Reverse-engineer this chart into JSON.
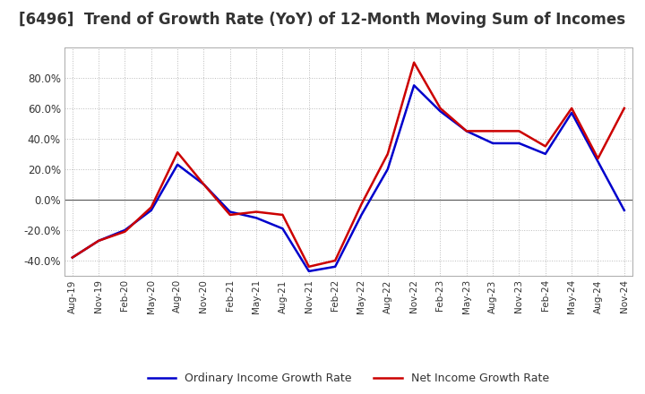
{
  "title": "[6496]  Trend of Growth Rate (YoY) of 12-Month Moving Sum of Incomes",
  "title_fontsize": 12,
  "ylim": [
    -50,
    100
  ],
  "yticks": [
    -40.0,
    -20.0,
    0.0,
    20.0,
    40.0,
    60.0,
    80.0
  ],
  "ytick_labels": [
    "-40.0%",
    "-20.0%",
    "0.0%",
    "20.0%",
    "40.0%",
    "60.0%",
    "80.0%"
  ],
  "x_labels": [
    "Aug-19",
    "Nov-19",
    "Feb-20",
    "May-20",
    "Aug-20",
    "Nov-20",
    "Feb-21",
    "May-21",
    "Aug-21",
    "Nov-21",
    "Feb-22",
    "May-22",
    "Aug-22",
    "Nov-22",
    "Feb-23",
    "May-23",
    "Aug-23",
    "Nov-23",
    "Feb-24",
    "May-24",
    "Aug-24",
    "Nov-24"
  ],
  "ordinary_income": [
    -38,
    -27,
    -20,
    -7,
    23,
    10,
    -8,
    -12,
    -19,
    -47,
    -44,
    -10,
    20,
    75,
    58,
    45,
    37,
    37,
    30,
    57,
    25,
    -7
  ],
  "net_income": [
    -38,
    -27,
    -21,
    -5,
    31,
    10,
    -10,
    -8,
    -10,
    -44,
    -40,
    -3,
    30,
    90,
    60,
    45,
    45,
    45,
    35,
    60,
    27,
    60
  ],
  "ordinary_color": "#0000cc",
  "net_color": "#cc0000",
  "line_width": 1.8,
  "legend_labels": [
    "Ordinary Income Growth Rate",
    "Net Income Growth Rate"
  ],
  "background_color": "#ffffff",
  "grid_color": "#aaaaaa",
  "zero_line_color": "#555555"
}
